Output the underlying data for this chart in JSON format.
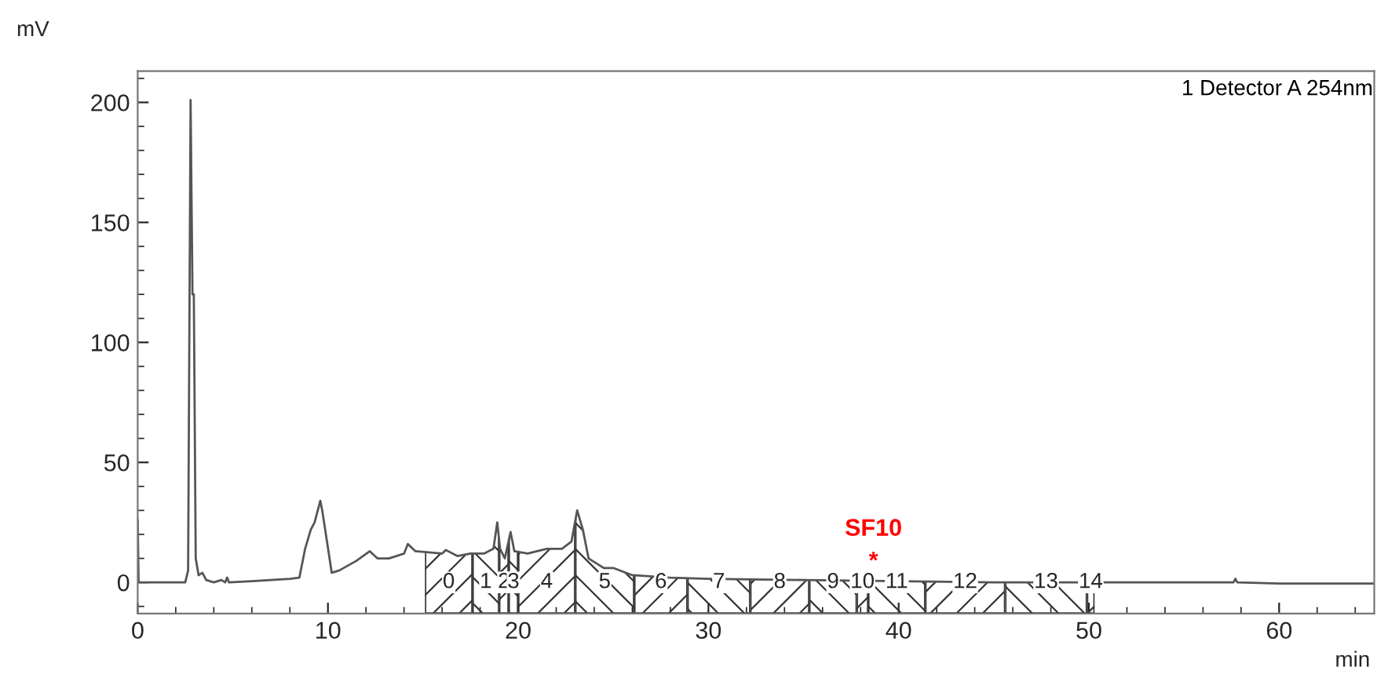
{
  "chart_data": {
    "type": "line",
    "xlabel": "min",
    "ylabel": "mV",
    "x": [
      0,
      0.05,
      2.5,
      2.65,
      2.78,
      2.88,
      2.95,
      3.05,
      3.2,
      3.4,
      3.6,
      4.0,
      4.4,
      4.6,
      4.7,
      4.8,
      6,
      8,
      8.5,
      8.8,
      9.1,
      9.3,
      9.6,
      9.7,
      10.2,
      10.6,
      11.5,
      12.2,
      12.6,
      13.2,
      14,
      14.2,
      14.6,
      16,
      16.2,
      16.8,
      17.5,
      18.2,
      18.7,
      18.9,
      19.05,
      19.3,
      19.6,
      19.8,
      20.5,
      21.5,
      22.3,
      22.8,
      23.1,
      23.4,
      23.7,
      24.5,
      25,
      26,
      28,
      30,
      35,
      40,
      45,
      50,
      57.6,
      57.7,
      57.8,
      60,
      65
    ],
    "series": [
      {
        "color": "#555555",
        "values": [
          26,
          0,
          0,
          5,
          201,
          120,
          120,
          10,
          3,
          4,
          1,
          0,
          1,
          0,
          2,
          0,
          0.5,
          1.5,
          2,
          14,
          22,
          25,
          34,
          30,
          4,
          5,
          9,
          13,
          10,
          10,
          12,
          16,
          13,
          12,
          13.5,
          11,
          12,
          12,
          14,
          25,
          14,
          10,
          21,
          13,
          12,
          14,
          14,
          17,
          30,
          22,
          10,
          6,
          6,
          3,
          2,
          1.5,
          1,
          0.5,
          0,
          0,
          0,
          1.5,
          0,
          -0.5,
          -0.5
        ]
      }
    ],
    "xlim": [
      0,
      65
    ],
    "ylim": [
      -13,
      213
    ],
    "xticks": [
      0,
      10,
      20,
      30,
      40,
      50,
      60
    ],
    "yticks": [
      0,
      50,
      100,
      150,
      200
    ],
    "grid": false,
    "marker": "none",
    "line_style": "solid",
    "bands": [
      {
        "axis": "x",
        "from": 15.1,
        "to": 17.6,
        "label": "0"
      },
      {
        "axis": "x",
        "from": 17.6,
        "to": 19.0,
        "label": "1"
      },
      {
        "axis": "x",
        "from": 19.0,
        "to": 19.5,
        "label": "2"
      },
      {
        "axis": "x",
        "from": 19.5,
        "to": 20.0,
        "label": "3"
      },
      {
        "axis": "x",
        "from": 20.0,
        "to": 23.0,
        "label": "4"
      },
      {
        "axis": "x",
        "from": 23.0,
        "to": 26.1,
        "label": "5"
      },
      {
        "axis": "x",
        "from": 26.1,
        "to": 28.9,
        "label": "6"
      },
      {
        "axis": "x",
        "from": 28.9,
        "to": 32.2,
        "label": "7"
      },
      {
        "axis": "x",
        "from": 32.2,
        "to": 35.3,
        "label": "8"
      },
      {
        "axis": "x",
        "from": 35.3,
        "to": 37.8,
        "label": "9"
      },
      {
        "axis": "x",
        "from": 37.8,
        "to": 38.4,
        "label": "10"
      },
      {
        "axis": "x",
        "from": 38.4,
        "to": 41.4,
        "label": "11"
      },
      {
        "axis": "x",
        "from": 41.4,
        "to": 45.6,
        "label": "12"
      },
      {
        "axis": "x",
        "from": 45.6,
        "to": 49.9,
        "label": "13"
      },
      {
        "axis": "x",
        "from": 49.9,
        "to": 50.3,
        "label": "14"
      }
    ],
    "annotations": [
      "1 Detector A 254nm",
      "SF10",
      "*"
    ]
  }
}
